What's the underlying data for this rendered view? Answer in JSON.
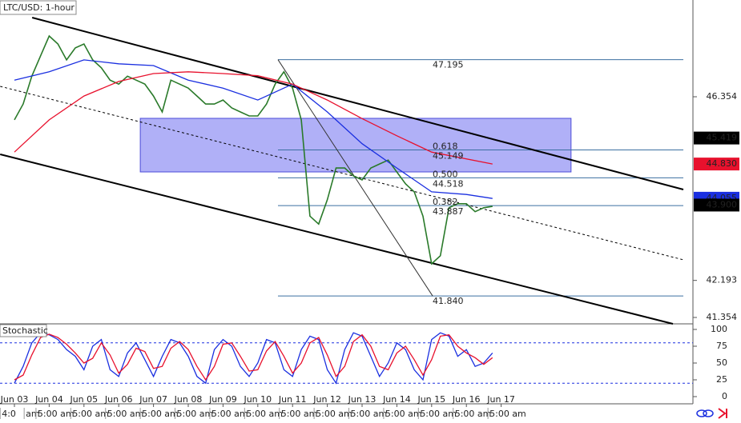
{
  "chart_data": [
    {
      "type": "line",
      "title": "LTC/USD: 1-hour",
      "xlim": [
        -0.415,
        19.516
      ],
      "ylim": [
        41.209,
        48.546
      ],
      "yticks": [
        46.354,
        42.193,
        41.354
      ],
      "price_tags": [
        {
          "value": 45.419,
          "label": "45.419",
          "color": "#000000"
        },
        {
          "value": 44.83,
          "label": "44.830",
          "color": "#e8112d"
        },
        {
          "value": 44.055,
          "label": "44.055",
          "color": "#1a2fe0"
        },
        {
          "value": 43.9,
          "label": "43.900",
          "color": "#000000"
        }
      ],
      "series": [
        {
          "color": "#2a7a2a",
          "x": [
            0,
            0.25,
            0.5,
            0.75,
            1,
            1.25,
            1.5,
            1.75,
            2,
            2.25,
            2.5,
            2.75,
            3,
            3.25,
            3.5,
            3.75,
            4,
            4.25,
            4.5,
            4.75,
            5,
            5.25,
            5.5,
            5.75,
            6,
            6.25,
            6.5,
            6.75,
            7,
            7.25,
            7.5,
            7.75,
            8,
            8.25,
            8.5,
            8.75,
            9,
            9.25,
            9.5,
            9.75,
            10,
            10.25,
            10.5,
            10.75,
            11,
            11.25,
            11.5,
            11.75,
            12,
            12.25,
            12.5,
            12.75,
            13,
            13.25,
            13.5,
            13.75
          ],
          "values": [
            45.83,
            46.19,
            46.82,
            47.28,
            47.73,
            47.55,
            47.19,
            47.46,
            47.55,
            47.19,
            47.01,
            46.73,
            46.64,
            46.82,
            46.73,
            46.64,
            46.37,
            46.01,
            46.73,
            46.64,
            46.55,
            46.37,
            46.19,
            46.19,
            46.28,
            46.1,
            46.01,
            45.92,
            45.92,
            46.19,
            46.64,
            46.92,
            46.55,
            45.83,
            43.65,
            43.47,
            44.02,
            44.74,
            44.74,
            44.56,
            44.47,
            44.74,
            44.83,
            44.92,
            44.65,
            44.38,
            44.2,
            43.65,
            42.57,
            42.75,
            43.84,
            43.93,
            43.93,
            43.75,
            43.84,
            43.87
          ]
        },
        {
          "color": "#1a2fe0",
          "x": [
            0,
            1,
            2,
            3,
            4,
            5,
            6,
            7,
            8,
            9,
            10,
            11,
            12,
            13,
            13.75
          ],
          "values": [
            46.73,
            46.92,
            47.19,
            47.1,
            47.06,
            46.73,
            46.55,
            46.28,
            46.64,
            46.01,
            45.29,
            44.74,
            44.2,
            44.14,
            44.05
          ]
        },
        {
          "color": "#e8112d",
          "x": [
            0,
            1,
            2,
            3,
            4,
            5,
            6,
            7,
            8,
            9,
            10,
            11,
            12,
            13.75
          ],
          "values": [
            45.1,
            45.83,
            46.37,
            46.7,
            46.88,
            46.92,
            46.88,
            46.83,
            46.64,
            46.28,
            45.86,
            45.47,
            45.1,
            44.83
          ]
        }
      ],
      "channel_lines": [
        {
          "x": [
            0.51,
            19.24
          ],
          "y": [
            48.147,
            44.253
          ],
          "style": "solid"
        },
        {
          "x": [
            -0.41,
            18.94
          ],
          "y": [
            45.05,
            41.209
          ],
          "style": "solid"
        },
        {
          "x": [
            -0.41,
            19.24
          ],
          "y": [
            46.59,
            42.66
          ],
          "style": "dashed"
        }
      ],
      "trend_line": {
        "x": [
          7.58,
          12.03
        ],
        "y": [
          47.195,
          41.84
        ]
      },
      "zone": {
        "x": [
          3.62,
          16.01
        ],
        "y": [
          44.651,
          45.865
        ],
        "color": "#7070f0"
      },
      "fib": {
        "x": [
          7.58,
          19.24
        ],
        "color": "#3b6fa0",
        "levels": [
          {
            "price": 47.195
          },
          {
            "ratio": 0.618,
            "price": 45.149
          },
          {
            "ratio": {
              "value": 0.5,
              "label": "0.500"
            },
            "price": 44.518
          },
          {
            "ratio": 0.382,
            "price": 43.887
          },
          {
            "price": {
              "value": 41.84,
              "label": "41.840"
            }
          }
        ]
      }
    },
    {
      "type": "line",
      "title": "Stochastic",
      "xlim": [
        -0.415,
        19.516
      ],
      "ylim": [
        -10.7,
        108.3
      ],
      "yticks": [
        0,
        25,
        50,
        75,
        100
      ],
      "levels": [
        20,
        80
      ],
      "xticks": [
        {
          "value": 0,
          "label": "Jun 03"
        },
        {
          "value": 1,
          "label": "Jun 04"
        },
        {
          "value": 2,
          "label": "Jun 05"
        },
        {
          "value": 3,
          "label": "Jun 06"
        },
        {
          "value": 4,
          "label": "Jun 07"
        },
        {
          "value": 5,
          "label": "Jun 08"
        },
        {
          "value": 6,
          "label": "Jun 09"
        },
        {
          "value": 7,
          "label": "Jun 10"
        },
        {
          "value": 8,
          "label": "Jun 11"
        },
        {
          "value": 9,
          "label": "Jun 12"
        },
        {
          "value": 10,
          "label": "Jun 13"
        },
        {
          "value": 11,
          "label": "Jun 14"
        },
        {
          "value": 12,
          "label": "Jun 15"
        },
        {
          "value": 13,
          "label": "Jun 16"
        },
        {
          "value": 14,
          "label": "Jun 17"
        }
      ],
      "time_labels": [
        {
          "value": -0.41,
          "label": "4:0"
        },
        {
          "value": 0.28,
          "label": "am"
        },
        {
          "value": 0.62,
          "label": "5:00 am"
        },
        {
          "value": 1.62,
          "label": "5:00 am"
        },
        {
          "value": 2.62,
          "label": "5:00 am"
        },
        {
          "value": 3.62,
          "label": "5:00 am"
        },
        {
          "value": 4.62,
          "label": "5:00 am"
        },
        {
          "value": 5.62,
          "label": "5:00 am"
        },
        {
          "value": 6.62,
          "label": "5:00 am"
        },
        {
          "value": 7.62,
          "label": "5:00 am"
        },
        {
          "value": 8.62,
          "label": "5:00 am"
        },
        {
          "value": 9.62,
          "label": "5:00 am"
        },
        {
          "value": 10.62,
          "label": "5:00 am"
        },
        {
          "value": 11.62,
          "label": "5:00 am"
        },
        {
          "value": 12.62,
          "label": "5:00 am"
        },
        {
          "value": 13.62,
          "label": "5:00 am"
        }
      ],
      "series": [
        {
          "color": "#1a2fe0",
          "x": [
            0,
            0.25,
            0.5,
            0.75,
            1,
            1.25,
            1.5,
            1.75,
            2,
            2.25,
            2.5,
            2.75,
            3,
            3.25,
            3.5,
            3.75,
            4,
            4.25,
            4.5,
            4.75,
            5,
            5.25,
            5.5,
            5.75,
            6,
            6.25,
            6.5,
            6.75,
            7,
            7.25,
            7.5,
            7.75,
            8,
            8.25,
            8.5,
            8.75,
            9,
            9.25,
            9.5,
            9.75,
            10,
            10.25,
            10.5,
            10.75,
            11,
            11.25,
            11.5,
            11.75,
            12,
            12.25,
            12.5,
            12.75,
            13,
            13.25,
            13.5,
            13.75
          ],
          "values": [
            20,
            45,
            80,
            95,
            92,
            85,
            70,
            60,
            40,
            75,
            85,
            40,
            30,
            65,
            80,
            55,
            30,
            60,
            85,
            80,
            60,
            30,
            20,
            70,
            85,
            75,
            45,
            30,
            50,
            85,
            80,
            40,
            30,
            70,
            90,
            85,
            40,
            20,
            70,
            95,
            90,
            60,
            30,
            50,
            80,
            70,
            40,
            25,
            85,
            95,
            90,
            60,
            70,
            45,
            50,
            65
          ]
        },
        {
          "color": "#e8112d",
          "x": [
            0,
            0.25,
            0.5,
            0.75,
            1,
            1.25,
            1.5,
            1.75,
            2,
            2.25,
            2.5,
            2.75,
            3,
            3.25,
            3.5,
            3.75,
            4,
            4.25,
            4.5,
            4.75,
            5,
            5.25,
            5.5,
            5.75,
            6,
            6.25,
            6.5,
            6.75,
            7,
            7.25,
            7.5,
            7.75,
            8,
            8.25,
            8.5,
            8.75,
            9,
            9.25,
            9.5,
            9.75,
            10,
            10.25,
            10.5,
            10.75,
            11,
            11.25,
            11.5,
            11.75,
            12,
            12.25,
            12.5,
            12.75,
            13,
            13.25,
            13.5,
            13.75
          ],
          "values": [
            25,
            32,
            62,
            88,
            93,
            88,
            78,
            65,
            50,
            57,
            80,
            62,
            35,
            48,
            72,
            67,
            42,
            45,
            72,
            82,
            70,
            45,
            25,
            45,
            78,
            80,
            60,
            38,
            40,
            68,
            82,
            60,
            35,
            50,
            80,
            88,
            62,
            30,
            45,
            82,
            92,
            75,
            45,
            40,
            65,
            75,
            55,
            32,
            55,
            90,
            92,
            75,
            65,
            58,
            48,
            58
          ]
        }
      ]
    }
  ]
}
